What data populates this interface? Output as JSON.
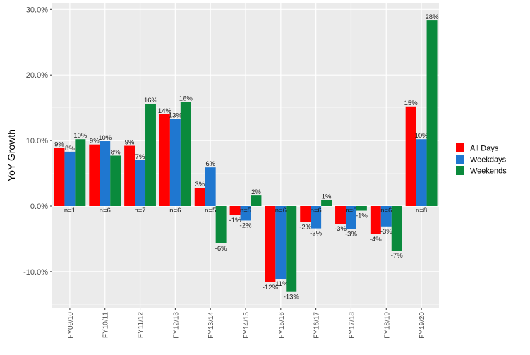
{
  "chart_data": {
    "type": "bar",
    "ylabel": "YoY Growth",
    "ylim": [
      -0.155,
      0.31
    ],
    "y_ticks": [
      -0.1,
      0.0,
      0.1,
      0.2,
      0.3
    ],
    "y_tick_labels": [
      "-10.0%",
      "0.0%",
      "10.0%",
      "20.0%",
      "30.0%"
    ],
    "categories": [
      "FY09/10",
      "FY10/11",
      "FY11/12",
      "FY12/13",
      "FY13/14",
      "FY14/15",
      "FY15/16",
      "FY16/17",
      "FY17/18",
      "FY18/19",
      "FY19/20"
    ],
    "n_labels": [
      "n=1",
      "n=6",
      "n=7",
      "n=6",
      "n=5",
      "n=5",
      "n=6",
      "n=6",
      "n=6",
      "n=6",
      "n=8"
    ],
    "series": [
      {
        "name": "All Days",
        "color": "#ff0000",
        "values": [
          0.089,
          0.094,
          0.092,
          0.14,
          0.028,
          -0.014,
          -0.116,
          -0.024,
          -0.027,
          -0.043,
          0.152
        ],
        "labels": [
          "9%",
          "9%",
          "9%",
          "14%",
          "3%",
          "-1%",
          "-12%",
          "-2%",
          "-3%",
          "-4%",
          "15%"
        ]
      },
      {
        "name": "Weekdays",
        "color": "#1f77d0",
        "values": [
          0.083,
          0.099,
          0.07,
          0.133,
          0.059,
          -0.022,
          -0.111,
          -0.034,
          -0.035,
          -0.031,
          0.102
        ],
        "labels": [
          "8%",
          "10%",
          "7%",
          "13%",
          "6%",
          "-2%",
          "-11%",
          "-3%",
          "-3%",
          "-3%",
          "10%"
        ]
      },
      {
        "name": "Weekends",
        "color": "#0a8a3c",
        "values": [
          0.102,
          0.077,
          0.156,
          0.159,
          -0.057,
          0.016,
          -0.131,
          0.009,
          -0.007,
          -0.068,
          0.283
        ],
        "labels": [
          "10%",
          "8%",
          "16%",
          "16%",
          "-6%",
          "2%",
          "-13%",
          "1%",
          "-1%",
          "-7%",
          "28%"
        ]
      }
    ],
    "grid": true,
    "legend_position": "right"
  }
}
